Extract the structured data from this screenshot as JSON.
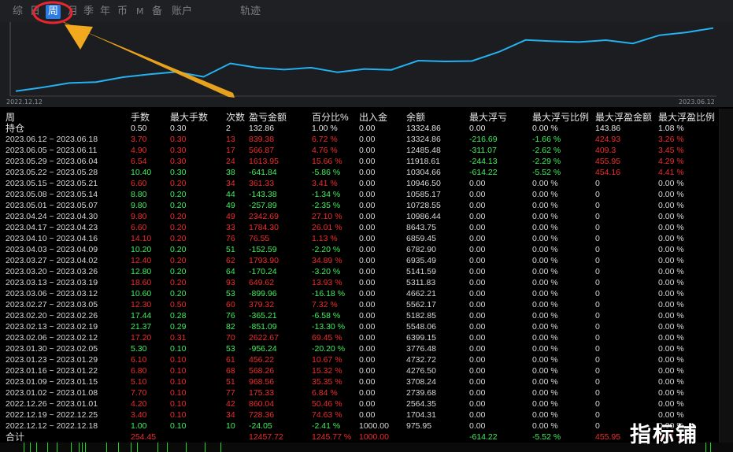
{
  "tabs": [
    {
      "label": "综",
      "active": false
    },
    {
      "label": "日",
      "active": false
    },
    {
      "label": "周",
      "active": true
    },
    {
      "label": "月",
      "active": false
    },
    {
      "label": "季",
      "active": false
    },
    {
      "label": "年",
      "active": false
    },
    {
      "label": "币",
      "active": false
    },
    {
      "label": "M",
      "active": false
    },
    {
      "label": "备",
      "active": false
    },
    {
      "label": "账户",
      "active": false
    },
    {
      "label": "轨迹",
      "active": false
    }
  ],
  "chart": {
    "start_label": "2022.12.12",
    "end_label": "2023.06.12",
    "line_color": "#25b1f0",
    "highlight_color": "#e8262f",
    "arrow_color": "#f2a91d",
    "balance_series": [
      975.95,
      1704.31,
      2564.35,
      2739.68,
      3708.24,
      4276.5,
      4732.72,
      3776.48,
      6399.15,
      5548.06,
      5182.85,
      5562.17,
      4662.21,
      5311.83,
      5141.59,
      6935.49,
      6782.9,
      6859.45,
      8643.75,
      10986.44,
      10728.55,
      10585.17,
      10946.5,
      10304.66,
      11918.61,
      12485.48,
      13324.86
    ]
  },
  "table": {
    "headers": [
      "周",
      "手数",
      "最大手数",
      "次数",
      "盈亏金额",
      "百分比%",
      "出入金",
      "余额",
      "最大浮亏",
      "最大浮亏比例",
      "最大浮盈金额",
      "最大浮盈比例"
    ],
    "holding": {
      "period": "持仓",
      "lots": "0.50",
      "maxlots": "0.30",
      "trades": "2",
      "pnl": "132.86",
      "pct": "1.00 %",
      "flow": "0.00",
      "balance": "13324.86",
      "maxdd": "0.00",
      "maxddpct": "0.00 %",
      "maxprofit": "143.86",
      "maxprofitpct": "1.08 %"
    },
    "rows": [
      {
        "period": "2023.06.12 ~ 2023.06.18",
        "lots": "3.70",
        "maxlots": "0.30",
        "trades": "13",
        "pnl": "839.38",
        "pct": "6.72 %",
        "flow": "0.00",
        "balance": "13324.86",
        "maxdd": "-216.69",
        "maxddpct": "-1.66 %",
        "maxprofit": "424.93",
        "maxprofitpct": "3.26 %",
        "sign": "+"
      },
      {
        "period": "2023.06.05 ~ 2023.06.11",
        "lots": "4.90",
        "maxlots": "0.30",
        "trades": "17",
        "pnl": "566.87",
        "pct": "4.76 %",
        "flow": "0.00",
        "balance": "12485.48",
        "maxdd": "-311.07",
        "maxddpct": "-2.62 %",
        "maxprofit": "409.3",
        "maxprofitpct": "3.45 %",
        "sign": "+"
      },
      {
        "period": "2023.05.29 ~ 2023.06.04",
        "lots": "6.54",
        "maxlots": "0.30",
        "trades": "24",
        "pnl": "1613.95",
        "pct": "15.66 %",
        "flow": "0.00",
        "balance": "11918.61",
        "maxdd": "-244.13",
        "maxddpct": "-2.29 %",
        "maxprofit": "455.95",
        "maxprofitpct": "4.29 %",
        "sign": "+"
      },
      {
        "period": "2023.05.22 ~ 2023.05.28",
        "lots": "10.40",
        "maxlots": "0.30",
        "trades": "38",
        "pnl": "-641.84",
        "pct": "-5.86 %",
        "flow": "0.00",
        "balance": "10304.66",
        "maxdd": "-614.22",
        "maxddpct": "-5.52 %",
        "maxprofit": "454.16",
        "maxprofitpct": "4.41 %",
        "sign": "-"
      },
      {
        "period": "2023.05.15 ~ 2023.05.21",
        "lots": "6.60",
        "maxlots": "0.20",
        "trades": "34",
        "pnl": "361.33",
        "pct": "3.41 %",
        "flow": "0.00",
        "balance": "10946.50",
        "maxdd": "0.00",
        "maxddpct": "0.00 %",
        "maxprofit": "0",
        "maxprofitpct": "0.00 %",
        "sign": "+"
      },
      {
        "period": "2023.05.08 ~ 2023.05.14",
        "lots": "8.80",
        "maxlots": "0.20",
        "trades": "44",
        "pnl": "-143.38",
        "pct": "-1.34 %",
        "flow": "0.00",
        "balance": "10585.17",
        "maxdd": "0.00",
        "maxddpct": "0.00 %",
        "maxprofit": "0",
        "maxprofitpct": "0.00 %",
        "sign": "-"
      },
      {
        "period": "2023.05.01 ~ 2023.05.07",
        "lots": "9.80",
        "maxlots": "0.20",
        "trades": "49",
        "pnl": "-257.89",
        "pct": "-2.35 %",
        "flow": "0.00",
        "balance": "10728.55",
        "maxdd": "0.00",
        "maxddpct": "0.00 %",
        "maxprofit": "0",
        "maxprofitpct": "0.00 %",
        "sign": "-"
      },
      {
        "period": "2023.04.24 ~ 2023.04.30",
        "lots": "9.80",
        "maxlots": "0.20",
        "trades": "49",
        "pnl": "2342.69",
        "pct": "27.10 %",
        "flow": "0.00",
        "balance": "10986.44",
        "maxdd": "0.00",
        "maxddpct": "0.00 %",
        "maxprofit": "0",
        "maxprofitpct": "0.00 %",
        "sign": "+"
      },
      {
        "period": "2023.04.17 ~ 2023.04.23",
        "lots": "6.60",
        "maxlots": "0.20",
        "trades": "33",
        "pnl": "1784.30",
        "pct": "26.01 %",
        "flow": "0.00",
        "balance": "8643.75",
        "maxdd": "0.00",
        "maxddpct": "0.00 %",
        "maxprofit": "0",
        "maxprofitpct": "0.00 %",
        "sign": "+"
      },
      {
        "period": "2023.04.10 ~ 2023.04.16",
        "lots": "14.10",
        "maxlots": "0.20",
        "trades": "76",
        "pnl": "76.55",
        "pct": "1.13 %",
        "flow": "0.00",
        "balance": "6859.45",
        "maxdd": "0.00",
        "maxddpct": "0.00 %",
        "maxprofit": "0",
        "maxprofitpct": "0.00 %",
        "sign": "+"
      },
      {
        "period": "2023.04.03 ~ 2023.04.09",
        "lots": "10.20",
        "maxlots": "0.20",
        "trades": "51",
        "pnl": "-152.59",
        "pct": "-2.20 %",
        "flow": "0.00",
        "balance": "6782.90",
        "maxdd": "0.00",
        "maxddpct": "0.00 %",
        "maxprofit": "0",
        "maxprofitpct": "0.00 %",
        "sign": "-"
      },
      {
        "period": "2023.03.27 ~ 2023.04.02",
        "lots": "12.40",
        "maxlots": "0.20",
        "trades": "62",
        "pnl": "1793.90",
        "pct": "34.89 %",
        "flow": "0.00",
        "balance": "6935.49",
        "maxdd": "0.00",
        "maxddpct": "0.00 %",
        "maxprofit": "0",
        "maxprofitpct": "0.00 %",
        "sign": "+"
      },
      {
        "period": "2023.03.20 ~ 2023.03.26",
        "lots": "12.80",
        "maxlots": "0.20",
        "trades": "64",
        "pnl": "-170.24",
        "pct": "-3.20 %",
        "flow": "0.00",
        "balance": "5141.59",
        "maxdd": "0.00",
        "maxddpct": "0.00 %",
        "maxprofit": "0",
        "maxprofitpct": "0.00 %",
        "sign": "-"
      },
      {
        "period": "2023.03.13 ~ 2023.03.19",
        "lots": "18.60",
        "maxlots": "0.20",
        "trades": "93",
        "pnl": "649.62",
        "pct": "13.93 %",
        "flow": "0.00",
        "balance": "5311.83",
        "maxdd": "0.00",
        "maxddpct": "0.00 %",
        "maxprofit": "0",
        "maxprofitpct": "0.00 %",
        "sign": "+"
      },
      {
        "period": "2023.03.06 ~ 2023.03.12",
        "lots": "10.60",
        "maxlots": "0.20",
        "trades": "53",
        "pnl": "-899.96",
        "pct": "-16.18 %",
        "flow": "0.00",
        "balance": "4662.21",
        "maxdd": "0.00",
        "maxddpct": "0.00 %",
        "maxprofit": "0",
        "maxprofitpct": "0.00 %",
        "sign": "-"
      },
      {
        "period": "2023.02.27 ~ 2023.03.05",
        "lots": "12.30",
        "maxlots": "0.50",
        "trades": "60",
        "pnl": "379.32",
        "pct": "7.32 %",
        "flow": "0.00",
        "balance": "5562.17",
        "maxdd": "0.00",
        "maxddpct": "0.00 %",
        "maxprofit": "0",
        "maxprofitpct": "0.00 %",
        "sign": "+"
      },
      {
        "period": "2023.02.20 ~ 2023.02.26",
        "lots": "17.44",
        "maxlots": "0.28",
        "trades": "76",
        "pnl": "-365.21",
        "pct": "-6.58 %",
        "flow": "0.00",
        "balance": "5182.85",
        "maxdd": "0.00",
        "maxddpct": "0.00 %",
        "maxprofit": "0",
        "maxprofitpct": "0.00 %",
        "sign": "-"
      },
      {
        "period": "2023.02.13 ~ 2023.02.19",
        "lots": "21.37",
        "maxlots": "0.29",
        "trades": "82",
        "pnl": "-851.09",
        "pct": "-13.30 %",
        "flow": "0.00",
        "balance": "5548.06",
        "maxdd": "0.00",
        "maxddpct": "0.00 %",
        "maxprofit": "0",
        "maxprofitpct": "0.00 %",
        "sign": "-"
      },
      {
        "period": "2023.02.06 ~ 2023.02.12",
        "lots": "17.20",
        "maxlots": "0.31",
        "trades": "70",
        "pnl": "2622.67",
        "pct": "69.45 %",
        "flow": "0.00",
        "balance": "6399.15",
        "maxdd": "0.00",
        "maxddpct": "0.00 %",
        "maxprofit": "0",
        "maxprofitpct": "0.00 %",
        "sign": "+"
      },
      {
        "period": "2023.01.30 ~ 2023.02.05",
        "lots": "5.30",
        "maxlots": "0.10",
        "trades": "53",
        "pnl": "-956.24",
        "pct": "-20.20 %",
        "flow": "0.00",
        "balance": "3776.48",
        "maxdd": "0.00",
        "maxddpct": "0.00 %",
        "maxprofit": "0",
        "maxprofitpct": "0.00 %",
        "sign": "-"
      },
      {
        "period": "2023.01.23 ~ 2023.01.29",
        "lots": "6.10",
        "maxlots": "0.10",
        "trades": "61",
        "pnl": "456.22",
        "pct": "10.67 %",
        "flow": "0.00",
        "balance": "4732.72",
        "maxdd": "0.00",
        "maxddpct": "0.00 %",
        "maxprofit": "0",
        "maxprofitpct": "0.00 %",
        "sign": "+"
      },
      {
        "period": "2023.01.16 ~ 2023.01.22",
        "lots": "6.80",
        "maxlots": "0.10",
        "trades": "68",
        "pnl": "568.26",
        "pct": "15.32 %",
        "flow": "0.00",
        "balance": "4276.50",
        "maxdd": "0.00",
        "maxddpct": "0.00 %",
        "maxprofit": "0",
        "maxprofitpct": "0.00 %",
        "sign": "+"
      },
      {
        "period": "2023.01.09 ~ 2023.01.15",
        "lots": "5.10",
        "maxlots": "0.10",
        "trades": "51",
        "pnl": "968.56",
        "pct": "35.35 %",
        "flow": "0.00",
        "balance": "3708.24",
        "maxdd": "0.00",
        "maxddpct": "0.00 %",
        "maxprofit": "0",
        "maxprofitpct": "0.00 %",
        "sign": "+"
      },
      {
        "period": "2023.01.02 ~ 2023.01.08",
        "lots": "7.70",
        "maxlots": "0.10",
        "trades": "77",
        "pnl": "175.33",
        "pct": "6.84 %",
        "flow": "0.00",
        "balance": "2739.68",
        "maxdd": "0.00",
        "maxddpct": "0.00 %",
        "maxprofit": "0",
        "maxprofitpct": "0.00 %",
        "sign": "+"
      },
      {
        "period": "2022.12.26 ~ 2023.01.01",
        "lots": "4.20",
        "maxlots": "0.10",
        "trades": "42",
        "pnl": "860.04",
        "pct": "50.46 %",
        "flow": "0.00",
        "balance": "2564.35",
        "maxdd": "0.00",
        "maxddpct": "0.00 %",
        "maxprofit": "0",
        "maxprofitpct": "0.00 %",
        "sign": "+"
      },
      {
        "period": "2022.12.19 ~ 2022.12.25",
        "lots": "3.40",
        "maxlots": "0.10",
        "trades": "34",
        "pnl": "728.36",
        "pct": "74.63 %",
        "flow": "0.00",
        "balance": "1704.31",
        "maxdd": "0.00",
        "maxddpct": "0.00 %",
        "maxprofit": "0",
        "maxprofitpct": "0.00 %",
        "sign": "+"
      },
      {
        "period": "2022.12.12 ~ 2022.12.18",
        "lots": "1.00",
        "maxlots": "0.10",
        "trades": "10",
        "pnl": "-24.05",
        "pct": "-2.41 %",
        "flow": "1000.00",
        "balance": "975.95",
        "maxdd": "0.00",
        "maxddpct": "0.00 %",
        "maxprofit": "0",
        "maxprofitpct": "0.00 %",
        "sign": "-"
      }
    ],
    "total": {
      "period": "合计",
      "lots": "254.45",
      "pnl": "12457.72",
      "pct": "1245.77 %",
      "flow": "1000.00",
      "maxdd": "-614.22",
      "maxddpct": "-5.52 %",
      "maxprofit": "455.95",
      "maxprofitpct": "4.41 %"
    }
  },
  "watermark": "指标铺"
}
